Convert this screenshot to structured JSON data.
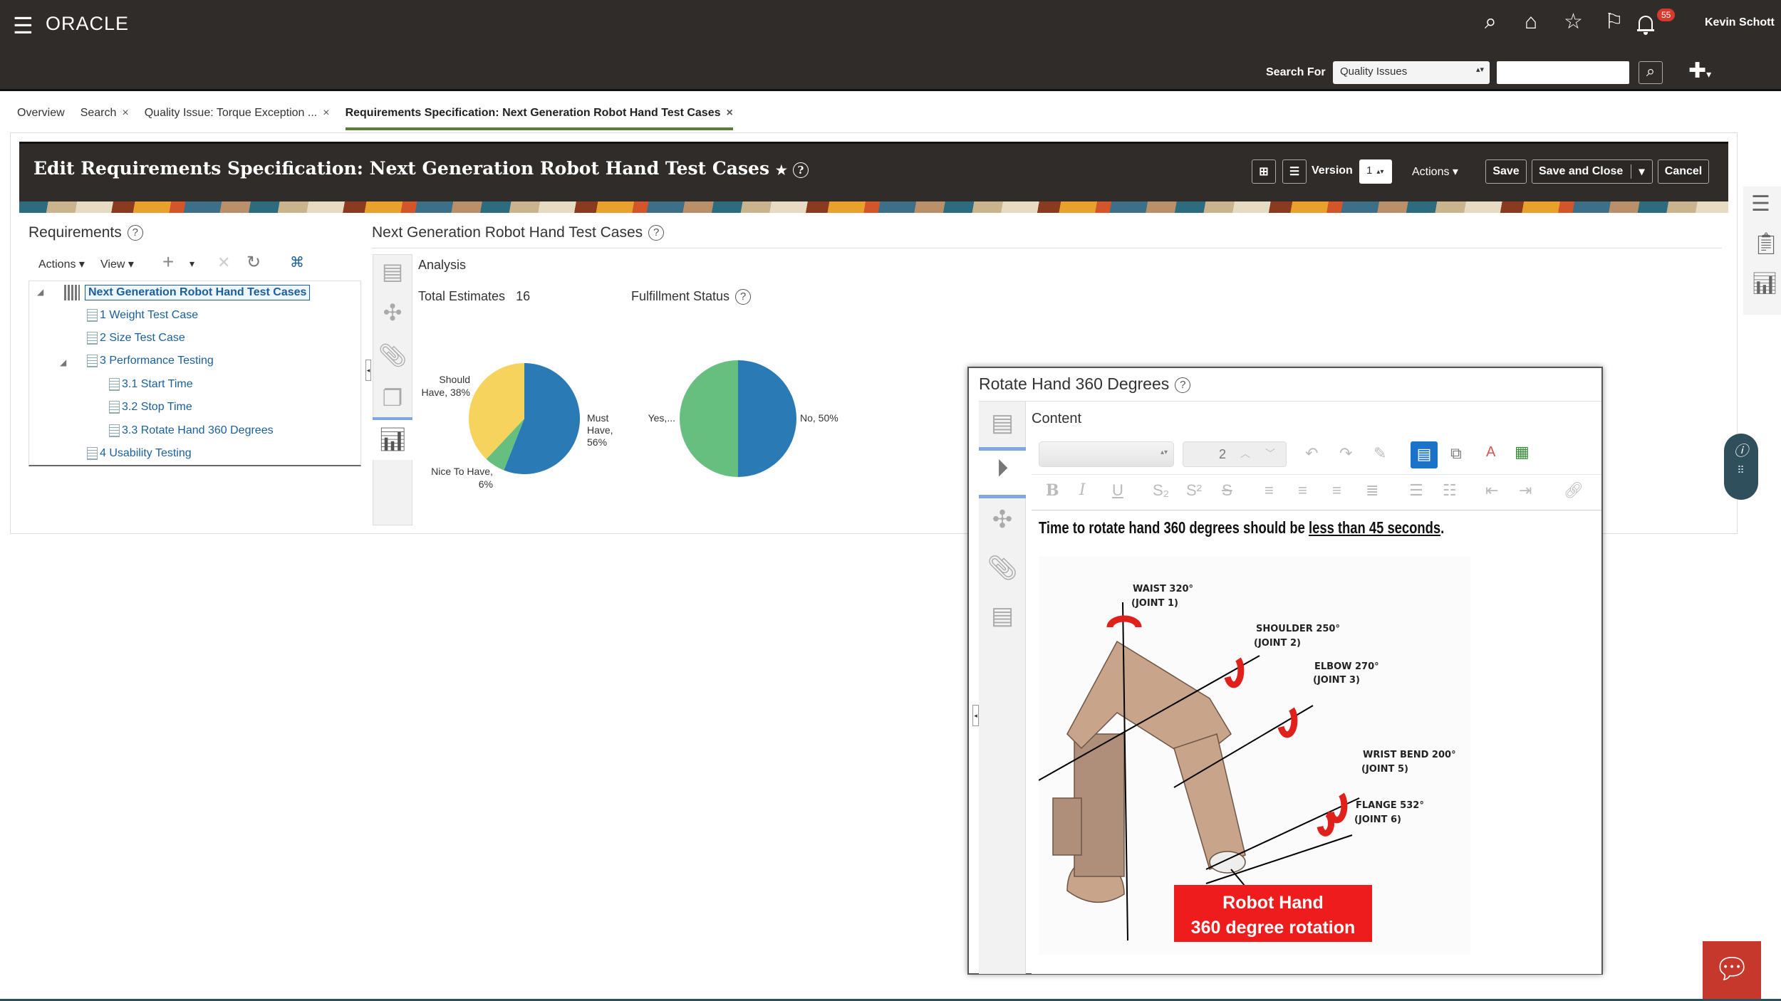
{
  "header": {
    "brand": "ORACLE",
    "user": "Kevin Schott",
    "notification_count": "55",
    "search_for_label": "Search For",
    "search_for_value": "Quality Issues",
    "search_value": ""
  },
  "tabs": [
    {
      "label": "Overview"
    },
    {
      "label": "Search",
      "closable": true
    },
    {
      "label": "Quality Issue: Torque Exception ...",
      "closable": true
    },
    {
      "label": "Requirements Specification: Next Generation Robot Hand Test Cases",
      "closable": true,
      "active": true
    }
  ],
  "page": {
    "title": "Edit Requirements Specification: Next Generation Robot Hand Test Cases",
    "version_label": "Version",
    "version_value": "1",
    "actions_label": "Actions",
    "save_label": "Save",
    "save_close_label": "Save and Close",
    "cancel_label": "Cancel"
  },
  "requirements": {
    "title": "Requirements",
    "actions_label": "Actions",
    "view_label": "View",
    "tree": [
      {
        "label": "Next Generation Robot Hand Test Cases",
        "selected": true
      },
      {
        "label": "1 Weight Test Case"
      },
      {
        "label": "2 Size Test Case"
      },
      {
        "label": "3 Performance Testing",
        "expanded": true
      },
      {
        "label": "3.1 Start Time"
      },
      {
        "label": "3.2 Stop Time"
      },
      {
        "label": "3.3 Rotate Hand 360 Degrees"
      },
      {
        "label": "4 Usability Testing"
      }
    ]
  },
  "analysis": {
    "section_title": "Next Generation Robot Hand Test Cases",
    "heading": "Analysis",
    "total_label": "Total Estimates",
    "total_value": "16",
    "fulfillment_label": "Fulfillment Status"
  },
  "chart_data": [
    {
      "type": "pie",
      "categories": [
        "Must Have",
        "Nice To Have",
        "Should Have"
      ],
      "values": [
        56,
        6,
        38
      ],
      "labels": [
        "Must Have, 56%",
        "Nice To Have, 6%",
        "Should Have, 38%"
      ],
      "colors": [
        "#2a7ab5",
        "#66bf7f",
        "#f6d35c"
      ]
    },
    {
      "type": "pie",
      "title": "Fulfillment Status",
      "categories": [
        "No",
        "Yes"
      ],
      "values": [
        50,
        50
      ],
      "labels": [
        "No, 50%",
        "Yes,..."
      ],
      "colors": [
        "#2a7ab5",
        "#66bf7f"
      ]
    }
  ],
  "dialog": {
    "title": "Rotate Hand 360 Degrees",
    "content_label": "Content",
    "font_size_value": "2",
    "text_prefix": "Time to rotate hand 360 degrees should be ",
    "text_underlined": "less than 45 seconds",
    "text_suffix": ".",
    "image": {
      "labels": {
        "waist": "WAIST 320°",
        "joint1": "(JOINT 1)",
        "shoulder": "SHOULDER 250°",
        "joint2": "(JOINT 2)",
        "elbow": "ELBOW 270°",
        "joint3": "(JOINT 3)",
        "wrist": "WRIST BEND 200°",
        "joint5": "(JOINT 5)",
        "flange": "FLANGE 532°",
        "joint6": "(JOINT 6)"
      },
      "caption_line1": "Robot Hand",
      "caption_line2": "360 degree rotation"
    }
  }
}
